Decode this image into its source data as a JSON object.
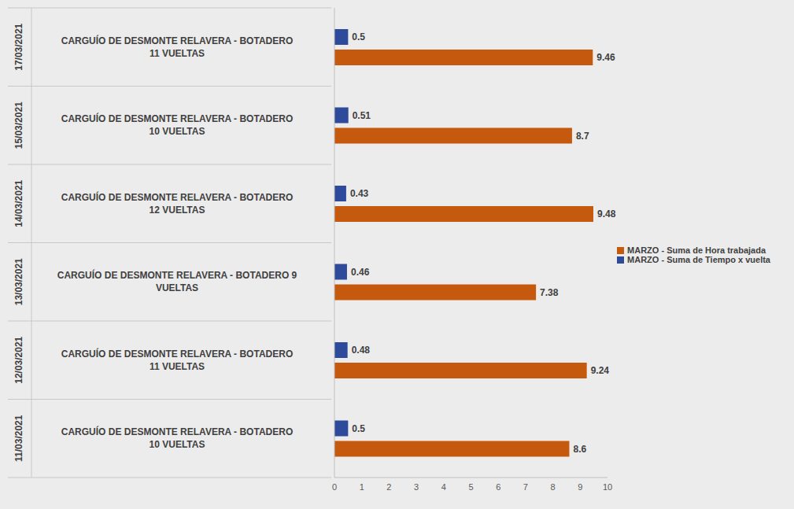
{
  "chart_data": {
    "type": "bar",
    "orientation": "horizontal",
    "categories": [
      "CARGUÍO DE DESMONTE RELAVERA - BOTADERO 11 VUELTAS",
      "CARGUÍO DE DESMONTE RELAVERA - BOTADERO 10 VUELTAS",
      "CARGUÍO DE DESMONTE RELAVERA - BOTADERO 12 VUELTAS",
      "CARGUÍO DE DESMONTE RELAVERA - BOTADERO 9 VUELTAS",
      "CARGUÍO DE DESMONTE RELAVERA - BOTADERO 11 VUELTAS",
      "CARGUÍO DE DESMONTE RELAVERA - BOTADERO 10 VUELTAS"
    ],
    "category_groups": [
      "17/03/2021",
      "15/03/2021",
      "14/03/2021",
      "13/03/2021",
      "12/03/2021",
      "11/03/2021"
    ],
    "series": [
      {
        "name": "MARZO - Suma de Tiempo x vuelta",
        "color": "#2e4b9b",
        "values": [
          0.5,
          0.51,
          0.43,
          0.46,
          0.48,
          0.5
        ]
      },
      {
        "name": "MARZO - Suma de Hora trabajada",
        "color": "#c55a0f",
        "values": [
          9.46,
          8.7,
          9.48,
          7.38,
          9.24,
          8.6
        ]
      }
    ],
    "xlim": [
      0,
      10
    ],
    "xticks": [
      0,
      1,
      2,
      3,
      4,
      5,
      6,
      7,
      8,
      9,
      10
    ],
    "grid": false,
    "legend": "right",
    "data_labels": true
  }
}
